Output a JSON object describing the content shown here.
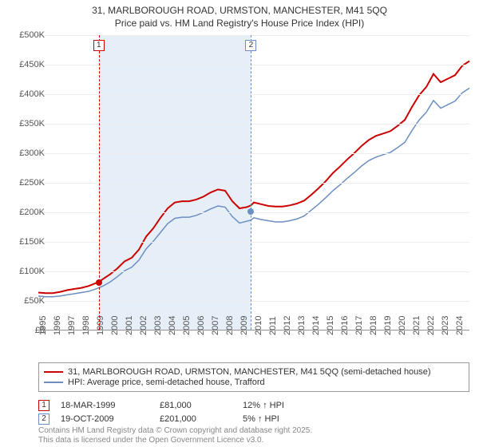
{
  "title_line1": "31, MARLBOROUGH ROAD, URMSTON, MANCHESTER, M41 5QQ",
  "title_line2": "Price paid vs. HM Land Registry's House Price Index (HPI)",
  "chart": {
    "type": "line",
    "background_color": "#ffffff",
    "grid_color": "#eeeeee",
    "axis_color": "#999999",
    "label_fontsize": 11,
    "title_fontsize": 12,
    "ylim": [
      0,
      500000
    ],
    "ytick_step": 50000,
    "yticks": [
      "£0",
      "£50K",
      "£100K",
      "£150K",
      "£200K",
      "£250K",
      "£300K",
      "£350K",
      "£400K",
      "£450K",
      "£500K"
    ],
    "x_start_year": 1995,
    "x_end_year": 2025,
    "xticks": [
      "1995",
      "1996",
      "1997",
      "1998",
      "1999",
      "2000",
      "2001",
      "2002",
      "2003",
      "2004",
      "2005",
      "2006",
      "2007",
      "2008",
      "2009",
      "2010",
      "2011",
      "2012",
      "2013",
      "2014",
      "2015",
      "2016",
      "2017",
      "2018",
      "2019",
      "2020",
      "2021",
      "2022",
      "2023",
      "2024"
    ],
    "shade_band": {
      "from_year": 1999.21,
      "to_year": 2009.8,
      "color": "#e6eef7"
    },
    "series": [
      {
        "name": "price_paid",
        "color": "#cc0000",
        "width": 2,
        "points": [
          [
            1995.0,
            63000
          ],
          [
            1995.5,
            62000
          ],
          [
            1996.0,
            62000
          ],
          [
            1996.5,
            64000
          ],
          [
            1997.0,
            67000
          ],
          [
            1997.5,
            69000
          ],
          [
            1998.0,
            71000
          ],
          [
            1998.5,
            74000
          ],
          [
            1999.0,
            79000
          ],
          [
            1999.21,
            81000
          ],
          [
            1999.5,
            86000
          ],
          [
            2000.0,
            94000
          ],
          [
            2000.5,
            104000
          ],
          [
            2001.0,
            116000
          ],
          [
            2001.5,
            122000
          ],
          [
            2002.0,
            136000
          ],
          [
            2002.5,
            158000
          ],
          [
            2003.0,
            172000
          ],
          [
            2003.5,
            190000
          ],
          [
            2004.0,
            206000
          ],
          [
            2004.5,
            216000
          ],
          [
            2005.0,
            218000
          ],
          [
            2005.5,
            218000
          ],
          [
            2006.0,
            221000
          ],
          [
            2006.5,
            226000
          ],
          [
            2007.0,
            233000
          ],
          [
            2007.5,
            238000
          ],
          [
            2008.0,
            236000
          ],
          [
            2008.5,
            218000
          ],
          [
            2009.0,
            206000
          ],
          [
            2009.5,
            208000
          ],
          [
            2009.8,
            211000
          ],
          [
            2010.0,
            216000
          ],
          [
            2010.5,
            213000
          ],
          [
            2011.0,
            210000
          ],
          [
            2011.5,
            209000
          ],
          [
            2012.0,
            209000
          ],
          [
            2012.5,
            211000
          ],
          [
            2013.0,
            214000
          ],
          [
            2013.5,
            219000
          ],
          [
            2014.0,
            229000
          ],
          [
            2014.5,
            240000
          ],
          [
            2015.0,
            252000
          ],
          [
            2015.5,
            266000
          ],
          [
            2016.0,
            277000
          ],
          [
            2016.5,
            289000
          ],
          [
            2017.0,
            300000
          ],
          [
            2017.5,
            312000
          ],
          [
            2018.0,
            322000
          ],
          [
            2018.5,
            329000
          ],
          [
            2019.0,
            333000
          ],
          [
            2019.5,
            337000
          ],
          [
            2020.0,
            346000
          ],
          [
            2020.5,
            356000
          ],
          [
            2021.0,
            378000
          ],
          [
            2021.5,
            398000
          ],
          [
            2022.0,
            412000
          ],
          [
            2022.5,
            434000
          ],
          [
            2023.0,
            420000
          ],
          [
            2023.5,
            426000
          ],
          [
            2024.0,
            432000
          ],
          [
            2024.5,
            448000
          ],
          [
            2025.0,
            456000
          ]
        ]
      },
      {
        "name": "hpi",
        "color": "#6b8fc2",
        "width": 1.5,
        "points": [
          [
            1995.0,
            57000
          ],
          [
            1995.5,
            56000
          ],
          [
            1996.0,
            56000
          ],
          [
            1996.5,
            57000
          ],
          [
            1997.0,
            59000
          ],
          [
            1997.5,
            61000
          ],
          [
            1998.0,
            63000
          ],
          [
            1998.5,
            65000
          ],
          [
            1999.0,
            69000
          ],
          [
            1999.5,
            74000
          ],
          [
            2000.0,
            81000
          ],
          [
            2000.5,
            90000
          ],
          [
            2001.0,
            100000
          ],
          [
            2001.5,
            106000
          ],
          [
            2002.0,
            118000
          ],
          [
            2002.5,
            137000
          ],
          [
            2003.0,
            150000
          ],
          [
            2003.5,
            165000
          ],
          [
            2004.0,
            180000
          ],
          [
            2004.5,
            189000
          ],
          [
            2005.0,
            191000
          ],
          [
            2005.5,
            191000
          ],
          [
            2006.0,
            194000
          ],
          [
            2006.5,
            199000
          ],
          [
            2007.0,
            205000
          ],
          [
            2007.5,
            210000
          ],
          [
            2008.0,
            208000
          ],
          [
            2008.5,
            192000
          ],
          [
            2009.0,
            181000
          ],
          [
            2009.5,
            184000
          ],
          [
            2009.8,
            186000
          ],
          [
            2010.0,
            190000
          ],
          [
            2010.5,
            187000
          ],
          [
            2011.0,
            185000
          ],
          [
            2011.5,
            183000
          ],
          [
            2012.0,
            183000
          ],
          [
            2012.5,
            185000
          ],
          [
            2013.0,
            188000
          ],
          [
            2013.5,
            193000
          ],
          [
            2014.0,
            203000
          ],
          [
            2014.5,
            213000
          ],
          [
            2015.0,
            224000
          ],
          [
            2015.5,
            236000
          ],
          [
            2016.0,
            246000
          ],
          [
            2016.5,
            257000
          ],
          [
            2017.0,
            267000
          ],
          [
            2017.5,
            278000
          ],
          [
            2018.0,
            287000
          ],
          [
            2018.5,
            293000
          ],
          [
            2019.0,
            297000
          ],
          [
            2019.5,
            301000
          ],
          [
            2020.0,
            309000
          ],
          [
            2020.5,
            318000
          ],
          [
            2021.0,
            338000
          ],
          [
            2021.5,
            356000
          ],
          [
            2022.0,
            369000
          ],
          [
            2022.5,
            389000
          ],
          [
            2023.0,
            376000
          ],
          [
            2023.5,
            382000
          ],
          [
            2024.0,
            388000
          ],
          [
            2024.5,
            402000
          ],
          [
            2025.0,
            410000
          ]
        ]
      }
    ],
    "sale_markers": [
      {
        "idx": "1",
        "year": 1999.21,
        "price": 81000,
        "color": "#cc0000"
      },
      {
        "idx": "2",
        "year": 2009.8,
        "price": 201000,
        "color": "#6b8fc2"
      }
    ]
  },
  "legend": {
    "items": [
      {
        "color": "#cc0000",
        "label": "31, MARLBOROUGH ROAD, URMSTON, MANCHESTER, M41 5QQ (semi-detached house)"
      },
      {
        "color": "#6b8fc2",
        "label": "HPI: Average price, semi-detached house, Trafford"
      }
    ]
  },
  "sales": [
    {
      "idx": "1",
      "color": "#cc0000",
      "date": "18-MAR-1999",
      "price": "£81,000",
      "delta": "12% ↑ HPI"
    },
    {
      "idx": "2",
      "color": "#6b8fc2",
      "date": "19-OCT-2009",
      "price": "£201,000",
      "delta": "5% ↑ HPI"
    }
  ],
  "attribution_line1": "Contains HM Land Registry data © Crown copyright and database right 2025.",
  "attribution_line2": "This data is licensed under the Open Government Licence v3.0."
}
